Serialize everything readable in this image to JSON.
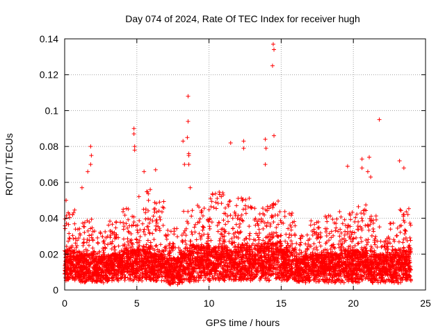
{
  "chart_data": {
    "type": "scatter",
    "title": "Day 074 of 2024, Rate Of TEC Index for receiver hugh",
    "xlabel": "GPS time / hours",
    "ylabel": "ROTI / TECUs",
    "xlim": [
      0,
      25
    ],
    "ylim": [
      0,
      0.14
    ],
    "x_ticks": [
      0,
      5,
      10,
      15,
      20,
      25
    ],
    "x_tick_labels": [
      "0",
      "5",
      "10",
      "15",
      "20",
      "25"
    ],
    "y_ticks": [
      0,
      0.02,
      0.04,
      0.06,
      0.08,
      0.1,
      0.12,
      0.14
    ],
    "y_tick_labels": [
      "0",
      "0.02",
      "0.04",
      "0.06",
      "0.08",
      "0.1",
      "0.12",
      "0.14"
    ],
    "grid": true,
    "marker": "plus",
    "marker_color": "#ff0000",
    "data_range_x": [
      0,
      24
    ],
    "notable_points": [
      {
        "x": 0.1,
        "y": 0.05
      },
      {
        "x": 1.2,
        "y": 0.057
      },
      {
        "x": 1.6,
        "y": 0.066
      },
      {
        "x": 1.8,
        "y": 0.08
      },
      {
        "x": 1.85,
        "y": 0.075
      },
      {
        "x": 1.8,
        "y": 0.07
      },
      {
        "x": 4.8,
        "y": 0.09
      },
      {
        "x": 4.8,
        "y": 0.087
      },
      {
        "x": 4.85,
        "y": 0.08
      },
      {
        "x": 4.85,
        "y": 0.078
      },
      {
        "x": 5.5,
        "y": 0.066
      },
      {
        "x": 6.3,
        "y": 0.067
      },
      {
        "x": 8.2,
        "y": 0.083
      },
      {
        "x": 8.3,
        "y": 0.07
      },
      {
        "x": 8.55,
        "y": 0.108
      },
      {
        "x": 8.55,
        "y": 0.094
      },
      {
        "x": 8.5,
        "y": 0.085
      },
      {
        "x": 8.6,
        "y": 0.076
      },
      {
        "x": 8.6,
        "y": 0.075
      },
      {
        "x": 8.6,
        "y": 0.07
      },
      {
        "x": 8.7,
        "y": 0.057
      },
      {
        "x": 11.5,
        "y": 0.082
      },
      {
        "x": 12.4,
        "y": 0.083
      },
      {
        "x": 12.4,
        "y": 0.079
      },
      {
        "x": 13.9,
        "y": 0.084
      },
      {
        "x": 13.95,
        "y": 0.079
      },
      {
        "x": 13.9,
        "y": 0.07
      },
      {
        "x": 14.45,
        "y": 0.137
      },
      {
        "x": 14.5,
        "y": 0.134
      },
      {
        "x": 14.4,
        "y": 0.125
      },
      {
        "x": 14.5,
        "y": 0.086
      },
      {
        "x": 19.6,
        "y": 0.069
      },
      {
        "x": 20.6,
        "y": 0.073
      },
      {
        "x": 20.6,
        "y": 0.068
      },
      {
        "x": 21.1,
        "y": 0.074
      },
      {
        "x": 21.0,
        "y": 0.066
      },
      {
        "x": 21.2,
        "y": 0.063
      },
      {
        "x": 21.8,
        "y": 0.095
      },
      {
        "x": 23.2,
        "y": 0.072
      },
      {
        "x": 23.5,
        "y": 0.068
      }
    ],
    "bulk_envelope": [
      {
        "hour_start": 0,
        "hour_end": 1,
        "base_min": 0.005,
        "base_max": 0.022,
        "upper": 0.045
      },
      {
        "hour_start": 1,
        "hour_end": 2,
        "base_min": 0.004,
        "base_max": 0.02,
        "upper": 0.04
      },
      {
        "hour_start": 2,
        "hour_end": 3,
        "base_min": 0.004,
        "base_max": 0.018,
        "upper": 0.034
      },
      {
        "hour_start": 3,
        "hour_end": 4,
        "base_min": 0.005,
        "base_max": 0.02,
        "upper": 0.04
      },
      {
        "hour_start": 4,
        "hour_end": 5,
        "base_min": 0.005,
        "base_max": 0.022,
        "upper": 0.046
      },
      {
        "hour_start": 5,
        "hour_end": 6,
        "base_min": 0.005,
        "base_max": 0.024,
        "upper": 0.06
      },
      {
        "hour_start": 6,
        "hour_end": 7,
        "base_min": 0.005,
        "base_max": 0.02,
        "upper": 0.05
      },
      {
        "hour_start": 7,
        "hour_end": 8,
        "base_min": 0.003,
        "base_max": 0.018,
        "upper": 0.035
      },
      {
        "hour_start": 8,
        "hour_end": 9,
        "base_min": 0.004,
        "base_max": 0.022,
        "upper": 0.045
      },
      {
        "hour_start": 9,
        "hour_end": 10,
        "base_min": 0.005,
        "base_max": 0.024,
        "upper": 0.048
      },
      {
        "hour_start": 10,
        "hour_end": 11,
        "base_min": 0.005,
        "base_max": 0.024,
        "upper": 0.055
      },
      {
        "hour_start": 11,
        "hour_end": 12,
        "base_min": 0.005,
        "base_max": 0.024,
        "upper": 0.05
      },
      {
        "hour_start": 12,
        "hour_end": 13,
        "base_min": 0.005,
        "base_max": 0.024,
        "upper": 0.052
      },
      {
        "hour_start": 13,
        "hour_end": 14,
        "base_min": 0.005,
        "base_max": 0.024,
        "upper": 0.046
      },
      {
        "hour_start": 14,
        "hour_end": 15,
        "base_min": 0.005,
        "base_max": 0.026,
        "upper": 0.05
      },
      {
        "hour_start": 15,
        "hour_end": 16,
        "base_min": 0.005,
        "base_max": 0.022,
        "upper": 0.044
      },
      {
        "hour_start": 16,
        "hour_end": 17,
        "base_min": 0.004,
        "base_max": 0.018,
        "upper": 0.032
      },
      {
        "hour_start": 17,
        "hour_end": 18,
        "base_min": 0.004,
        "base_max": 0.02,
        "upper": 0.04
      },
      {
        "hour_start": 18,
        "hour_end": 19,
        "base_min": 0.004,
        "base_max": 0.02,
        "upper": 0.042
      },
      {
        "hour_start": 19,
        "hour_end": 20,
        "base_min": 0.004,
        "base_max": 0.022,
        "upper": 0.046
      },
      {
        "hour_start": 20,
        "hour_end": 21,
        "base_min": 0.004,
        "base_max": 0.022,
        "upper": 0.048
      },
      {
        "hour_start": 21,
        "hour_end": 22,
        "base_min": 0.004,
        "base_max": 0.02,
        "upper": 0.042
      },
      {
        "hour_start": 22,
        "hour_end": 23,
        "base_min": 0.004,
        "base_max": 0.02,
        "upper": 0.038
      },
      {
        "hour_start": 23,
        "hour_end": 24,
        "base_min": 0.004,
        "base_max": 0.022,
        "upper": 0.046
      }
    ]
  }
}
